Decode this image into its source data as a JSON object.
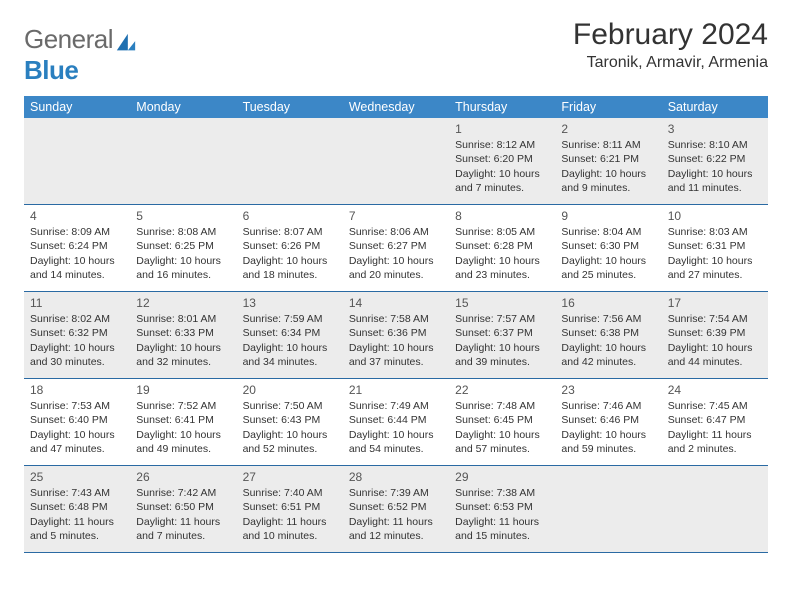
{
  "brand": {
    "part1": "General",
    "part2": "Blue"
  },
  "title": "February 2024",
  "location": "Taronik, Armavir, Armenia",
  "colors": {
    "header_bg": "#3c87c7",
    "rule": "#2a6aa3",
    "shade": "#ececec",
    "text": "#333333",
    "logo_gray": "#6a6a6a",
    "logo_blue": "#2a7fbf"
  },
  "dayNames": [
    "Sunday",
    "Monday",
    "Tuesday",
    "Wednesday",
    "Thursday",
    "Friday",
    "Saturday"
  ],
  "weeks": [
    [
      {
        "n": "",
        "sr": "",
        "ss": "",
        "dl": ""
      },
      {
        "n": "",
        "sr": "",
        "ss": "",
        "dl": ""
      },
      {
        "n": "",
        "sr": "",
        "ss": "",
        "dl": ""
      },
      {
        "n": "",
        "sr": "",
        "ss": "",
        "dl": ""
      },
      {
        "n": "1",
        "sr": "Sunrise: 8:12 AM",
        "ss": "Sunset: 6:20 PM",
        "dl": "Daylight: 10 hours and 7 minutes."
      },
      {
        "n": "2",
        "sr": "Sunrise: 8:11 AM",
        "ss": "Sunset: 6:21 PM",
        "dl": "Daylight: 10 hours and 9 minutes."
      },
      {
        "n": "3",
        "sr": "Sunrise: 8:10 AM",
        "ss": "Sunset: 6:22 PM",
        "dl": "Daylight: 10 hours and 11 minutes."
      }
    ],
    [
      {
        "n": "4",
        "sr": "Sunrise: 8:09 AM",
        "ss": "Sunset: 6:24 PM",
        "dl": "Daylight: 10 hours and 14 minutes."
      },
      {
        "n": "5",
        "sr": "Sunrise: 8:08 AM",
        "ss": "Sunset: 6:25 PM",
        "dl": "Daylight: 10 hours and 16 minutes."
      },
      {
        "n": "6",
        "sr": "Sunrise: 8:07 AM",
        "ss": "Sunset: 6:26 PM",
        "dl": "Daylight: 10 hours and 18 minutes."
      },
      {
        "n": "7",
        "sr": "Sunrise: 8:06 AM",
        "ss": "Sunset: 6:27 PM",
        "dl": "Daylight: 10 hours and 20 minutes."
      },
      {
        "n": "8",
        "sr": "Sunrise: 8:05 AM",
        "ss": "Sunset: 6:28 PM",
        "dl": "Daylight: 10 hours and 23 minutes."
      },
      {
        "n": "9",
        "sr": "Sunrise: 8:04 AM",
        "ss": "Sunset: 6:30 PM",
        "dl": "Daylight: 10 hours and 25 minutes."
      },
      {
        "n": "10",
        "sr": "Sunrise: 8:03 AM",
        "ss": "Sunset: 6:31 PM",
        "dl": "Daylight: 10 hours and 27 minutes."
      }
    ],
    [
      {
        "n": "11",
        "sr": "Sunrise: 8:02 AM",
        "ss": "Sunset: 6:32 PM",
        "dl": "Daylight: 10 hours and 30 minutes."
      },
      {
        "n": "12",
        "sr": "Sunrise: 8:01 AM",
        "ss": "Sunset: 6:33 PM",
        "dl": "Daylight: 10 hours and 32 minutes."
      },
      {
        "n": "13",
        "sr": "Sunrise: 7:59 AM",
        "ss": "Sunset: 6:34 PM",
        "dl": "Daylight: 10 hours and 34 minutes."
      },
      {
        "n": "14",
        "sr": "Sunrise: 7:58 AM",
        "ss": "Sunset: 6:36 PM",
        "dl": "Daylight: 10 hours and 37 minutes."
      },
      {
        "n": "15",
        "sr": "Sunrise: 7:57 AM",
        "ss": "Sunset: 6:37 PM",
        "dl": "Daylight: 10 hours and 39 minutes."
      },
      {
        "n": "16",
        "sr": "Sunrise: 7:56 AM",
        "ss": "Sunset: 6:38 PM",
        "dl": "Daylight: 10 hours and 42 minutes."
      },
      {
        "n": "17",
        "sr": "Sunrise: 7:54 AM",
        "ss": "Sunset: 6:39 PM",
        "dl": "Daylight: 10 hours and 44 minutes."
      }
    ],
    [
      {
        "n": "18",
        "sr": "Sunrise: 7:53 AM",
        "ss": "Sunset: 6:40 PM",
        "dl": "Daylight: 10 hours and 47 minutes."
      },
      {
        "n": "19",
        "sr": "Sunrise: 7:52 AM",
        "ss": "Sunset: 6:41 PM",
        "dl": "Daylight: 10 hours and 49 minutes."
      },
      {
        "n": "20",
        "sr": "Sunrise: 7:50 AM",
        "ss": "Sunset: 6:43 PM",
        "dl": "Daylight: 10 hours and 52 minutes."
      },
      {
        "n": "21",
        "sr": "Sunrise: 7:49 AM",
        "ss": "Sunset: 6:44 PM",
        "dl": "Daylight: 10 hours and 54 minutes."
      },
      {
        "n": "22",
        "sr": "Sunrise: 7:48 AM",
        "ss": "Sunset: 6:45 PM",
        "dl": "Daylight: 10 hours and 57 minutes."
      },
      {
        "n": "23",
        "sr": "Sunrise: 7:46 AM",
        "ss": "Sunset: 6:46 PM",
        "dl": "Daylight: 10 hours and 59 minutes."
      },
      {
        "n": "24",
        "sr": "Sunrise: 7:45 AM",
        "ss": "Sunset: 6:47 PM",
        "dl": "Daylight: 11 hours and 2 minutes."
      }
    ],
    [
      {
        "n": "25",
        "sr": "Sunrise: 7:43 AM",
        "ss": "Sunset: 6:48 PM",
        "dl": "Daylight: 11 hours and 5 minutes."
      },
      {
        "n": "26",
        "sr": "Sunrise: 7:42 AM",
        "ss": "Sunset: 6:50 PM",
        "dl": "Daylight: 11 hours and 7 minutes."
      },
      {
        "n": "27",
        "sr": "Sunrise: 7:40 AM",
        "ss": "Sunset: 6:51 PM",
        "dl": "Daylight: 11 hours and 10 minutes."
      },
      {
        "n": "28",
        "sr": "Sunrise: 7:39 AM",
        "ss": "Sunset: 6:52 PM",
        "dl": "Daylight: 11 hours and 12 minutes."
      },
      {
        "n": "29",
        "sr": "Sunrise: 7:38 AM",
        "ss": "Sunset: 6:53 PM",
        "dl": "Daylight: 11 hours and 15 minutes."
      },
      {
        "n": "",
        "sr": "",
        "ss": "",
        "dl": ""
      },
      {
        "n": "",
        "sr": "",
        "ss": "",
        "dl": ""
      }
    ]
  ]
}
